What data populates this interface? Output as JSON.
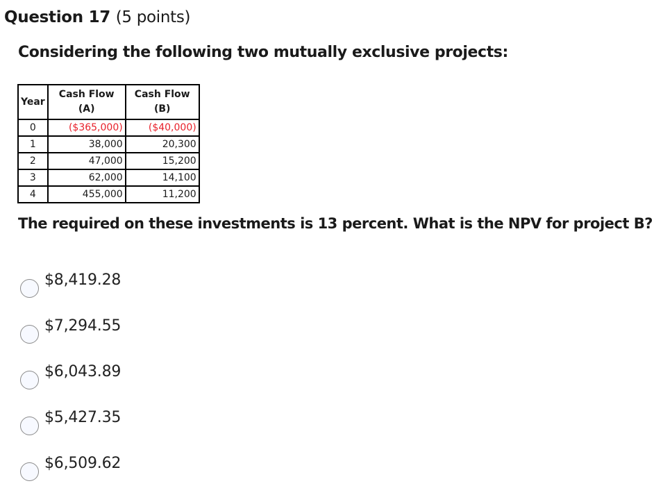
{
  "question": {
    "title": "Question 17",
    "points": "(5 points)",
    "intro": "Considering the following two mutually exclusive projects:",
    "prompt": "The required on these investments is 13 percent. What is the NPV for project B?"
  },
  "table": {
    "headers": {
      "year": "Year",
      "cash_a_line1": "Cash Flow",
      "cash_a_line2": "(A)",
      "cash_b_line1": "Cash Flow",
      "cash_b_line2": "(B)"
    },
    "rows": [
      {
        "year": "0",
        "a": "($365,000)",
        "b": "($40,000)"
      },
      {
        "year": "1",
        "a": "38,000",
        "b": "20,300"
      },
      {
        "year": "2",
        "a": "47,000",
        "b": "15,200"
      },
      {
        "year": "3",
        "a": "62,000",
        "b": "14,100"
      },
      {
        "year": "4",
        "a": "455,000",
        "b": "11,200"
      }
    ],
    "negative_color": "#e8202a"
  },
  "options": [
    {
      "label": "$8,419.28",
      "selected": false
    },
    {
      "label": "$7,294.55",
      "selected": false
    },
    {
      "label": "$6,043.89",
      "selected": false
    },
    {
      "label": "$5,427.35",
      "selected": false
    },
    {
      "label": "$6,509.62",
      "selected": false
    }
  ]
}
